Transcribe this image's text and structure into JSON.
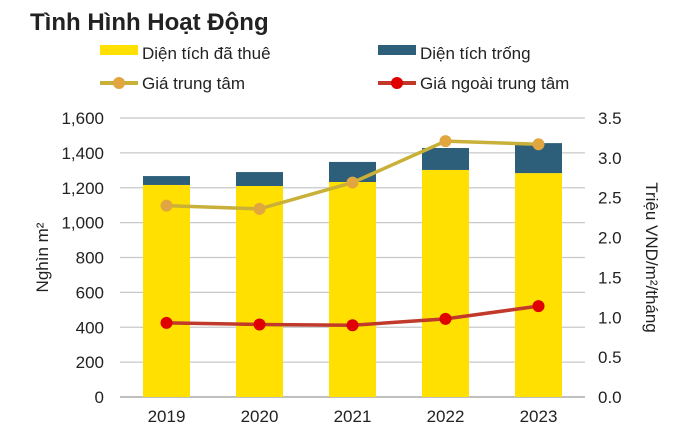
{
  "chart_data": {
    "type": "bar+line",
    "title": "Tình Hình Hoạt Động",
    "categories": [
      "2019",
      "2020",
      "2021",
      "2022",
      "2023"
    ],
    "y_left": {
      "label": "Nghìn m²",
      "range": [
        0,
        1600
      ],
      "ticks": [
        "0",
        "200",
        "400",
        "600",
        "800",
        "1,000",
        "1,200",
        "1,400",
        "1,600"
      ]
    },
    "y_right": {
      "label": "Triệu VND/m²/tháng",
      "range": [
        0,
        3.5
      ],
      "ticks": [
        "0.0",
        "0.5",
        "1.0",
        "1.5",
        "2.0",
        "2.5",
        "3.0",
        "3.5"
      ]
    },
    "grid": true,
    "legend_position": "top",
    "bars": [
      {
        "name": "Diện tích đã thuê",
        "color": "#FFE000",
        "values": [
          1216,
          1210,
          1233,
          1302,
          1284
        ]
      },
      {
        "name": "Diện tích trống",
        "color": "#2E5F7A",
        "values": [
          51,
          80,
          115,
          126,
          172
        ]
      }
    ],
    "lines": [
      {
        "name": "Giá trung tâm",
        "color": "#C9B038",
        "marker_color": "#E2A640",
        "values": [
          2.4,
          2.36,
          2.69,
          3.21,
          3.17
        ]
      },
      {
        "name": "Giá ngoài trung tâm",
        "color": "#C0392B",
        "marker_color": "#E00000",
        "values": [
          0.93,
          0.91,
          0.9,
          0.98,
          1.14
        ]
      }
    ]
  }
}
